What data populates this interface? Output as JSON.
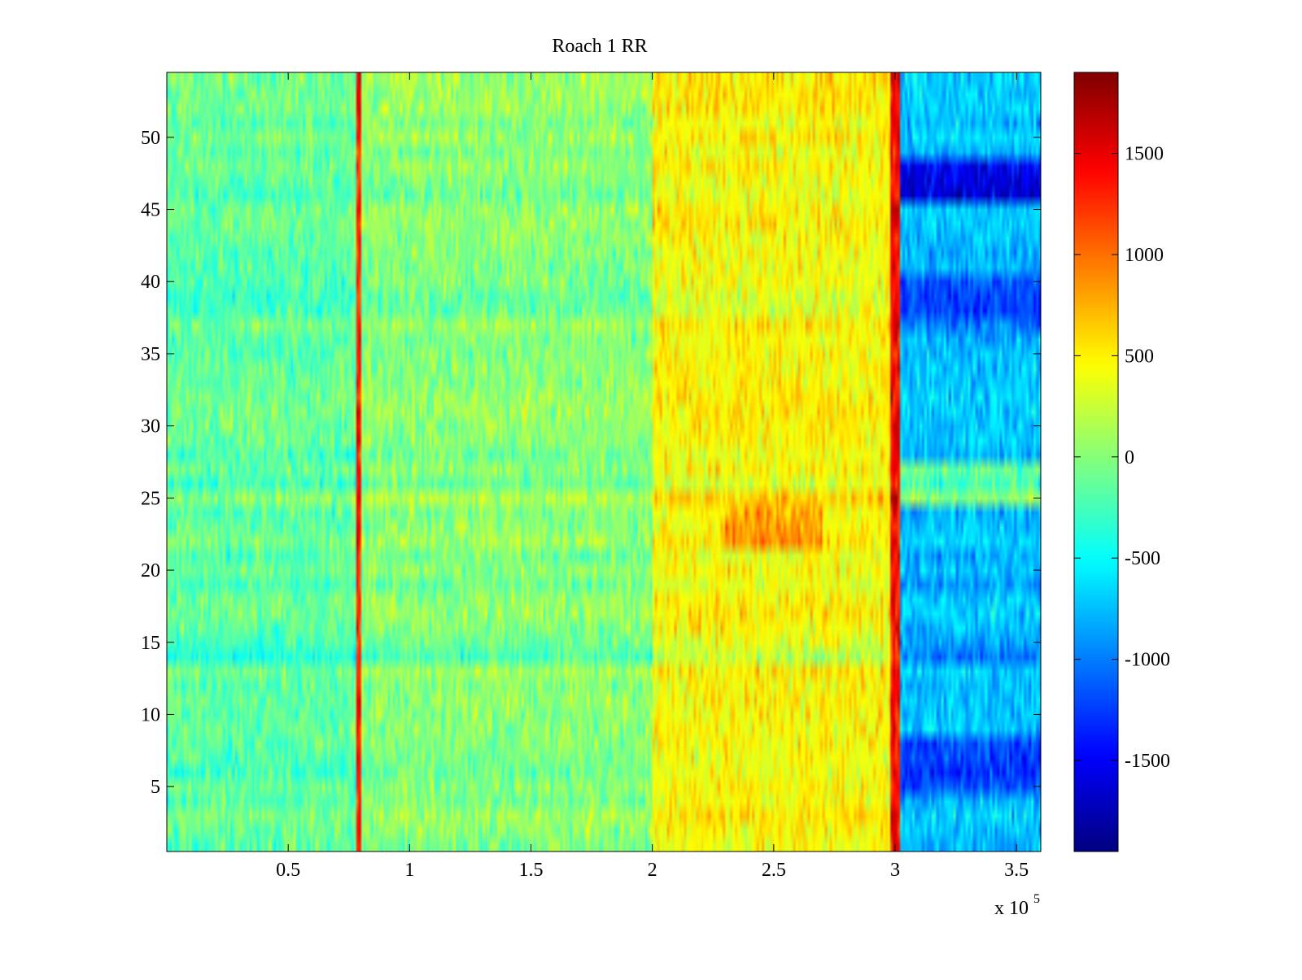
{
  "chart_data": {
    "type": "heatmap",
    "title": "Roach 1 RR",
    "xlabel": "",
    "ylabel": "",
    "x_multiplier_label": {
      "base": "x 10",
      "exponent": "5"
    },
    "xlim": [
      0,
      3.6
    ],
    "ylim": [
      0.5,
      54.5
    ],
    "rows": 54,
    "columns": 360,
    "x_ticks": [
      0.5,
      1,
      1.5,
      2,
      2.5,
      3,
      3.5
    ],
    "x_tick_labels": [
      "0.5",
      "1",
      "1.5",
      "2",
      "2.5",
      "3",
      "3.5"
    ],
    "y_ticks": [
      5,
      10,
      15,
      20,
      25,
      30,
      35,
      40,
      45,
      50
    ],
    "y_tick_labels": [
      "5",
      "10",
      "15",
      "20",
      "25",
      "30",
      "35",
      "40",
      "45",
      "50"
    ],
    "colorbar": {
      "colormap": "jet",
      "clim": [
        -1950,
        1900
      ],
      "ticks": [
        1500,
        1000,
        500,
        0,
        -500,
        -1000,
        -1500
      ],
      "tick_labels": [
        "1500",
        "1000",
        "500",
        "0",
        "-500",
        "-1000",
        "-1500"
      ]
    },
    "regions": [
      {
        "x_range": [
          0,
          0.78
        ],
        "mean_value": -150,
        "note": "cyan-green"
      },
      {
        "x_range": [
          0.78,
          0.8
        ],
        "mean_value": 1300,
        "note": "vertical red line"
      },
      {
        "x_range": [
          0.8,
          2.0
        ],
        "mean_value": 0,
        "note": "green-yellow"
      },
      {
        "x_range": [
          2.0,
          2.98
        ],
        "mean_value": 450,
        "note": "yellow-orange"
      },
      {
        "x_range": [
          2.98,
          3.02
        ],
        "mean_value": 1400,
        "note": "vertical red line"
      },
      {
        "x_range": [
          3.02,
          3.6
        ],
        "mean_value": -750,
        "note": "cyan-blue, rows 46-48 dark blue"
      }
    ]
  }
}
